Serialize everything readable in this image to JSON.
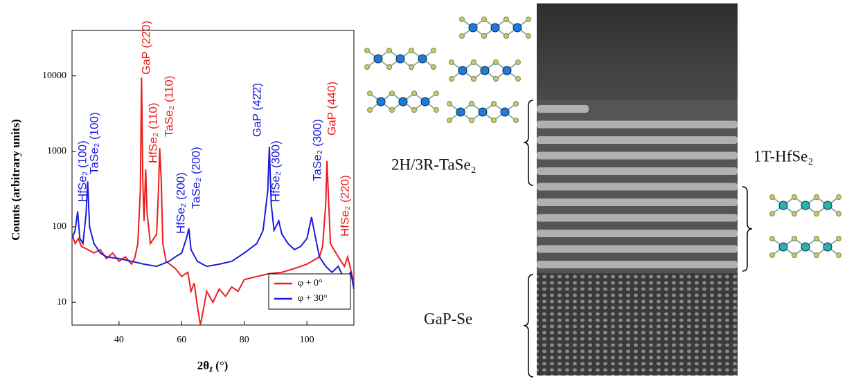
{
  "chart_data": {
    "type": "line",
    "log_y": true,
    "y_label": "Counts (arbitrary units)",
    "x_label": "2θᵪ (°)",
    "xlim": [
      25,
      115
    ],
    "xticks": [
      40,
      60,
      80,
      100
    ],
    "ylim": [
      5,
      40000
    ],
    "yticks": [
      10,
      100,
      1000,
      10000
    ],
    "legend": "lower right",
    "series": [
      {
        "name": "φ + 0°",
        "color": "#ee1c1c",
        "x": [
          25,
          26,
          27,
          28,
          30,
          32,
          34,
          36,
          38,
          40,
          42,
          44,
          45,
          46,
          46.8,
          47.2,
          47.6,
          48,
          48.5,
          49,
          50,
          52,
          52.6,
          53,
          53.5,
          54,
          55,
          58,
          60,
          62,
          63,
          64,
          65,
          66,
          68,
          70,
          72,
          74,
          76,
          78,
          80,
          84,
          88,
          92,
          96,
          100,
          104,
          105,
          106,
          106.4,
          106.8,
          107.5,
          110,
          112,
          113,
          115
        ],
        "values": [
          80,
          60,
          70,
          55,
          50,
          45,
          50,
          38,
          45,
          35,
          40,
          32,
          38,
          60,
          300,
          9500,
          400,
          120,
          580,
          150,
          60,
          80,
          300,
          1100,
          400,
          60,
          35,
          28,
          22,
          25,
          14,
          18,
          9,
          5,
          14,
          10,
          15,
          12,
          16,
          14,
          20,
          22,
          24,
          25,
          28,
          32,
          40,
          55,
          200,
          750,
          300,
          60,
          40,
          30,
          40,
          18
        ]
      },
      {
        "name": "φ + 30°",
        "color": "#1a1adc",
        "x": [
          25,
          26,
          26.8,
          27.5,
          28.5,
          29.5,
          30,
          30.6,
          32,
          34,
          36,
          40,
          44,
          48,
          52,
          56,
          58,
          60,
          61.5,
          62.3,
          63,
          65,
          68,
          72,
          76,
          80,
          84,
          86,
          87.5,
          88,
          88.6,
          89.5,
          91,
          92,
          94,
          96,
          98,
          100,
          101.5,
          102.5,
          104,
          106,
          108,
          110,
          112,
          114,
          115
        ],
        "values": [
          70,
          90,
          160,
          70,
          60,
          150,
          400,
          100,
          60,
          45,
          40,
          38,
          35,
          32,
          30,
          35,
          40,
          45,
          70,
          95,
          50,
          35,
          30,
          32,
          35,
          45,
          60,
          90,
          300,
          1150,
          200,
          90,
          120,
          80,
          60,
          50,
          55,
          70,
          135,
          80,
          40,
          30,
          25,
          30,
          20,
          25,
          15
        ]
      }
    ],
    "annotations": [
      {
        "text": "HfSe₂ (100)",
        "color": "#1a1adc"
      },
      {
        "text": "TaSe₂ (100)",
        "color": "#1a1adc"
      },
      {
        "text": "GaP (22̄0)",
        "color": "#ee1c1c"
      },
      {
        "text": "HfSe₂ (110)",
        "color": "#ee1c1c"
      },
      {
        "text": "TaSe₂ (110)",
        "color": "#ee1c1c"
      },
      {
        "text": "HfSe₂ (200)",
        "color": "#1a1adc"
      },
      {
        "text": "TaSe₂ (200)",
        "color": "#1a1adc"
      },
      {
        "text": "GaP (42̄2̄)",
        "color": "#1a1adc"
      },
      {
        "text": "HfSe₂ (300)",
        "color": "#1a1adc"
      },
      {
        "text": "TaSe₂ (300)",
        "color": "#1a1adc"
      },
      {
        "text": "GaP (440)",
        "color": "#ee1c1c"
      },
      {
        "text": "HfSe₂ (220)",
        "color": "#ee1c1c"
      }
    ]
  },
  "image_labels": {
    "tase2": "2H/3R-TaSe₂",
    "hfse2": "1T-HfSe₂",
    "gap": "GaP-Se"
  }
}
